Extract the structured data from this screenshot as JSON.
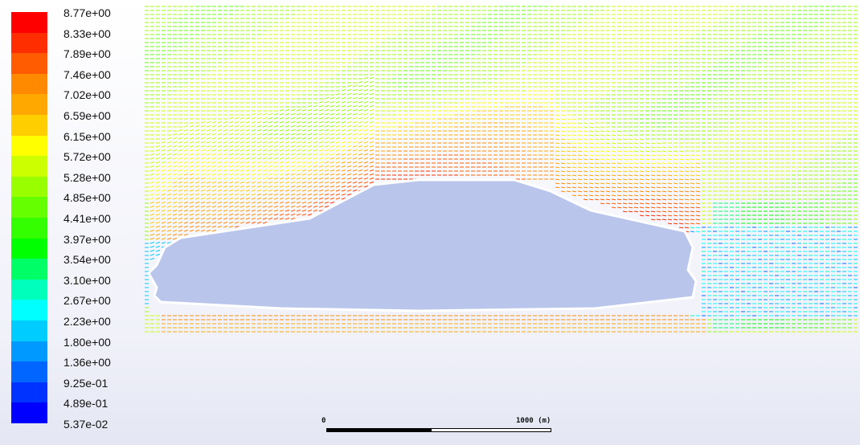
{
  "chart_data": {
    "type": "vector-field",
    "quantity_range": [
      0.0537,
      8.77
    ],
    "colorbar": {
      "colors": [
        "#ff0000",
        "#ff2e00",
        "#ff5b00",
        "#ff8a00",
        "#ffa800",
        "#ffce00",
        "#ffff00",
        "#ccff00",
        "#99ff00",
        "#66ff00",
        "#33ff00",
        "#00ff00",
        "#00ff66",
        "#00ffbb",
        "#00ffff",
        "#00ccff",
        "#0099ff",
        "#0066ff",
        "#0033ff",
        "#0000ff"
      ],
      "tick_labels": [
        "8.77e+00",
        "8.33e+00",
        "7.89e+00",
        "7.46e+00",
        "7.02e+00",
        "6.59e+00",
        "6.15e+00",
        "5.72e+00",
        "5.28e+00",
        "4.85e+00",
        "4.41e+00",
        "3.97e+00",
        "3.54e+00",
        "3.10e+00",
        "2.67e+00",
        "2.23e+00",
        "1.80e+00",
        "1.36e+00",
        "9.25e-01",
        "4.89e-01",
        "5.37e-02"
      ]
    },
    "scale_bar": {
      "start_label": "0",
      "end_label": "1000 (m)"
    }
  }
}
